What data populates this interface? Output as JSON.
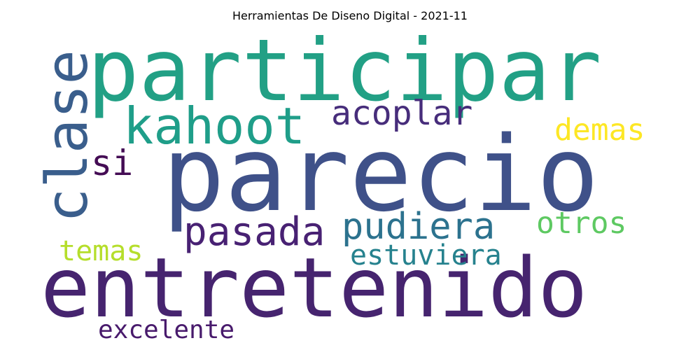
{
  "title": "Herramientas De Diseno Digital - 2021-11",
  "words": [
    {
      "text": "participar",
      "color": "#22a085"
    },
    {
      "text": "parecio",
      "color": "#3f5189"
    },
    {
      "text": "entretenido",
      "color": "#46246f"
    },
    {
      "text": "clase",
      "color": "#3a5e8c"
    },
    {
      "text": "kahoot",
      "color": "#1f9e89"
    },
    {
      "text": "acoplar",
      "color": "#472d7b"
    },
    {
      "text": "si",
      "color": "#440c54"
    },
    {
      "text": "demas",
      "color": "#fde725"
    },
    {
      "text": "pasada",
      "color": "#482173"
    },
    {
      "text": "pudiera",
      "color": "#2c728e"
    },
    {
      "text": "otros",
      "color": "#5ec962"
    },
    {
      "text": "temas",
      "color": "#b5de2b"
    },
    {
      "text": "estuviera",
      "color": "#26828e"
    },
    {
      "text": "excelente",
      "color": "#481a6c"
    }
  ]
}
